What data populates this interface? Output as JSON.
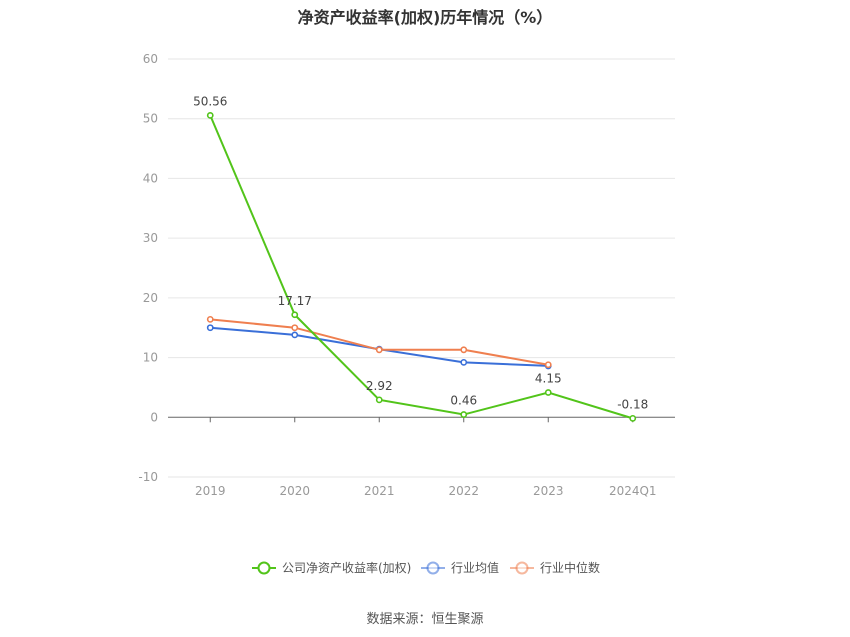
{
  "title": "净资产收益率(加权)历年情况（%）",
  "source": "数据来源：恒生聚源",
  "chart_data": {
    "type": "line",
    "title": "净资产收益率(加权)历年情况（%）",
    "categories": [
      "2019",
      "2020",
      "2021",
      "2022",
      "2023",
      "2024Q1"
    ],
    "ylim": [
      -10,
      60
    ],
    "yticks": [
      60,
      50,
      40,
      30,
      20,
      10,
      0,
      -10
    ],
    "grid": true,
    "legend_position": "bottom",
    "series": [
      {
        "name": "公司净资产收益率(加权)",
        "color": "#52c41a",
        "labeled": true,
        "values": [
          50.56,
          17.17,
          2.92,
          0.46,
          4.15,
          -0.18
        ],
        "labels": [
          "50.56",
          "17.17",
          "2.92",
          "0.46",
          "4.15",
          "-0.18"
        ]
      },
      {
        "name": "行业均值",
        "color": "#3a6fd8",
        "labeled": false,
        "values": [
          15.0,
          13.8,
          11.4,
          9.2,
          8.6,
          null
        ]
      },
      {
        "name": "行业中位数",
        "color": "#ef7f4f",
        "labeled": false,
        "values": [
          16.4,
          15.0,
          11.3,
          11.3,
          8.8,
          null
        ]
      }
    ]
  }
}
